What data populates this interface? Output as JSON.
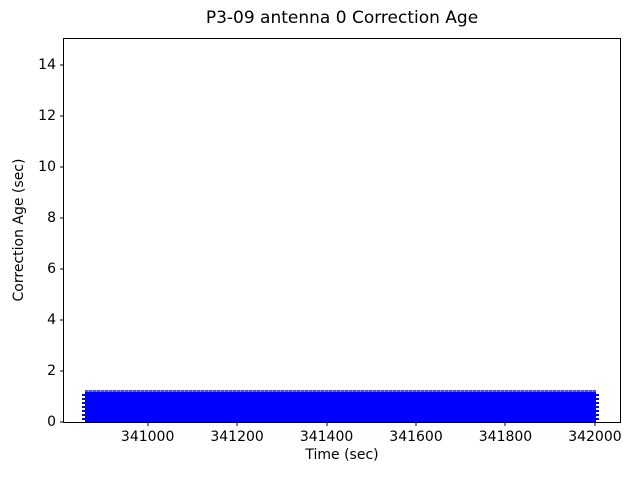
{
  "chart_data": {
    "type": "line",
    "title": "P3-09 antenna 0 Correction Age",
    "xlabel": "Time (sec)",
    "ylabel": "Correction Age (sec)",
    "xlim": [
      340813,
      342056
    ],
    "ylim": [
      0,
      15
    ],
    "xticks": [
      341000,
      341200,
      341400,
      341600,
      341800,
      342000
    ],
    "yticks": [
      0,
      2,
      4,
      6,
      8,
      10,
      12,
      14
    ],
    "grid": false,
    "legend_position": "none",
    "series": [
      {
        "name": "antenna 0 correction age",
        "color": "#0000ff",
        "style": "dense sawtooth oscillation rendered as a solid band",
        "x_start": 340860,
        "x_end": 342003,
        "y_min": 0,
        "y_max": 1.25
      }
    ]
  }
}
